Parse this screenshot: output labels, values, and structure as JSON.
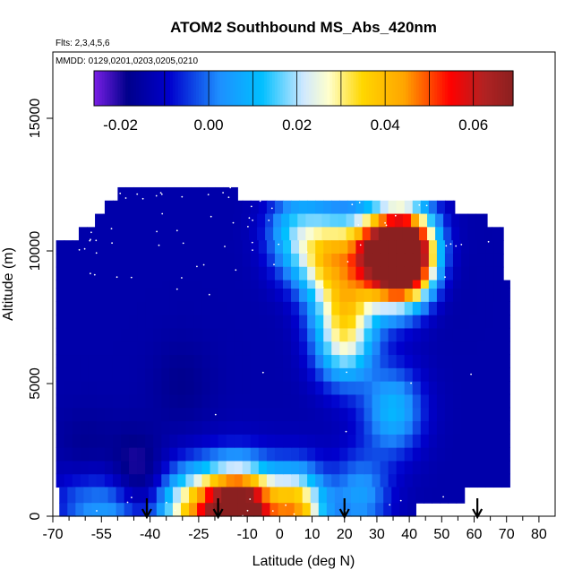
{
  "chart_data": {
    "type": "heatmap",
    "title": "ATOM2 Southbound MS_Abs_420nm",
    "subtitle_flights": "Flts: 2,3,4,5,6",
    "subtitle_dates": "MMDD: 0129,0201,0203,0205,0210",
    "xlabel": "Latitude (deg N)",
    "ylabel": "Altitude (m)",
    "xlim": [
      -70,
      85
    ],
    "ylim": [
      0,
      17500
    ],
    "x_ticks": [
      -70,
      -55,
      -40,
      -25,
      -10,
      0,
      10,
      20,
      30,
      40,
      50,
      60,
      70,
      80
    ],
    "x_ticks_minor": [
      -65,
      -60,
      -50,
      -45,
      -35,
      -30,
      -20,
      -15,
      -5,
      5,
      15,
      25,
      35,
      45,
      55,
      65,
      75
    ],
    "y_ticks": [
      0,
      5000,
      10000,
      15000
    ],
    "colorbar": {
      "range": [
        -0.026,
        0.069
      ],
      "tick_values": [
        -0.02,
        0.0,
        0.02,
        0.04,
        0.06
      ],
      "tick_labels": [
        "-0.02",
        "0.00",
        "0.02",
        "0.04",
        "0.06"
      ],
      "colors": [
        "#7a1fe6",
        "#00008b",
        "#0000cd",
        "#1e90ff",
        "#00bfff",
        "#cfe8ff",
        "#ffffcc",
        "#ffd700",
        "#ffa500",
        "#ff0000",
        "#b22222",
        "#8b2020"
      ],
      "color_positions": [
        0.0,
        0.08,
        0.18,
        0.3,
        0.4,
        0.5,
        0.56,
        0.64,
        0.74,
        0.85,
        0.93,
        1.0
      ],
      "divider_values": [
        -0.01,
        0.0,
        0.01,
        0.02,
        0.03,
        0.04,
        0.05,
        0.06
      ]
    },
    "arrow_latitudes": [
      -41,
      -19,
      20,
      61
    ],
    "altitude_bands": [
      {
        "ymin": 11900,
        "ymax": 12400,
        "xmin": -50,
        "xmax": -13
      },
      {
        "ymin": 11400,
        "ymax": 11900,
        "xmin": -54,
        "xmax": 54
      },
      {
        "ymin": 10900,
        "ymax": 11400,
        "xmin": -57,
        "xmax": 64
      },
      {
        "ymin": 10400,
        "ymax": 10900,
        "xmin": -62,
        "xmax": 69
      },
      {
        "ymin": 9900,
        "ymax": 10400,
        "xmin": -69,
        "xmax": 69
      },
      {
        "ymin": 9400,
        "ymax": 9900,
        "xmin": -69,
        "xmax": 69
      },
      {
        "ymin": 8900,
        "ymax": 9400,
        "xmin": -69,
        "xmax": 69
      },
      {
        "ymin": 1100,
        "ymax": 8900,
        "xmin": -69,
        "xmax": 71
      },
      {
        "ymin": 500,
        "ymax": 1100,
        "xmin": -68,
        "xmax": 57
      },
      {
        "ymin": 0,
        "ymax": 500,
        "xmin": -68,
        "xmax": 42
      }
    ],
    "features": [
      {
        "lat": -60,
        "alt": 2000,
        "value": -0.022
      },
      {
        "lat": -45,
        "alt": 1500,
        "value": -0.024
      },
      {
        "lat": -30,
        "alt": 5000,
        "value": -0.018
      },
      {
        "lat": 20,
        "alt": 6500,
        "value": 0.018
      },
      {
        "lat": 20,
        "alt": 8000,
        "value": 0.02
      },
      {
        "lat": 35,
        "alt": 4000,
        "value": 0.01
      },
      {
        "lat": 40,
        "alt": 9800,
        "value": 0.068
      },
      {
        "lat": 36,
        "alt": 9800,
        "value": 0.055
      },
      {
        "lat": 28,
        "alt": 9800,
        "value": 0.04
      },
      {
        "lat": 15,
        "alt": 9800,
        "value": 0.03
      },
      {
        "lat": 5,
        "alt": 10600,
        "value": 0.012
      },
      {
        "lat": -10,
        "alt": 150,
        "value": 0.065
      },
      {
        "lat": -19,
        "alt": 150,
        "value": 0.05
      },
      {
        "lat": -30,
        "alt": 150,
        "value": 0.022
      },
      {
        "lat": 5,
        "alt": 150,
        "value": 0.042
      },
      {
        "lat": -50,
        "alt": 150,
        "value": 0.005
      },
      {
        "lat": -60,
        "alt": 800,
        "value": 0.005
      },
      {
        "lat": 25,
        "alt": 800,
        "value": 0.005
      },
      {
        "lat": 45,
        "alt": 9300,
        "value": -0.026
      }
    ],
    "grid": false,
    "legend": "colorbar-top"
  }
}
